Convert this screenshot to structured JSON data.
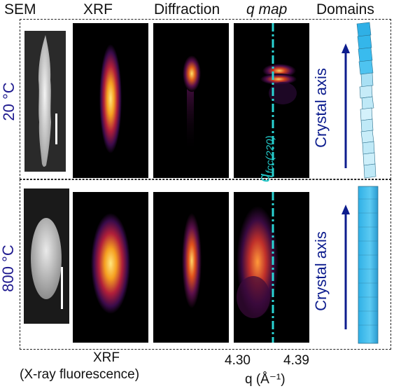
{
  "headers": {
    "sem": "SEM",
    "xrf": "XRF",
    "diffraction": "Diffraction",
    "qmap": "q map",
    "domains": "Domains"
  },
  "rows": [
    {
      "condition": "20 °C",
      "domain_label": "Crystal axis"
    },
    {
      "condition": "800 °C",
      "domain_label": "Crystal axis"
    }
  ],
  "qfcc_label": "q",
  "qfcc_sub": "fcc(220)",
  "bottom": {
    "xrf_title": "XRF",
    "xrf_full": "(X-ray fluorescence)",
    "q_tick_left": "4.30",
    "q_tick_right": "4.39",
    "q_axis_label": "q (Å⁻¹)"
  },
  "colors": {
    "condition_text": "#1f1a8f",
    "arrow": "#0d1d8e",
    "qfcc_line": "#2ad4d4",
    "crystal_light": "#bfe9f7",
    "crystal_dark": "#2fb0e6"
  }
}
